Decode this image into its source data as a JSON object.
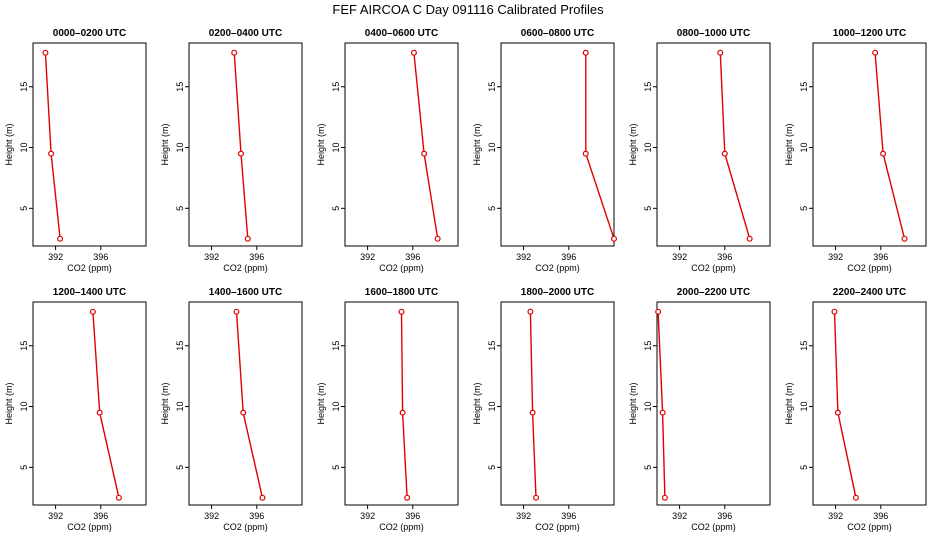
{
  "figure_title": "FEF AIRCOA C  Day 091116  Calibrated Profiles",
  "chart_data": {
    "type": "line",
    "xlabel": "CO2 (ppm)",
    "ylabel": "Height (m)",
    "xlim": [
      390.0,
      400.0
    ],
    "ylim": [
      1.9,
      18.6
    ],
    "x_ticks": [
      392,
      396
    ],
    "y_ticks": [
      5,
      10,
      15
    ],
    "grid": false,
    "series_color": "#e00000",
    "heights": [
      17.8,
      9.5,
      2.5
    ],
    "panels": [
      {
        "title": "0000–0200 UTC",
        "co2": [
          391.1,
          391.6,
          392.4
        ]
      },
      {
        "title": "0200–0400 UTC",
        "co2": [
          394.0,
          394.6,
          395.2
        ]
      },
      {
        "title": "0400–0600 UTC",
        "co2": [
          396.1,
          397.0,
          398.2
        ]
      },
      {
        "title": "0600–0800 UTC",
        "co2": [
          397.5,
          397.5,
          400.0
        ]
      },
      {
        "title": "0800–1000 UTC",
        "co2": [
          395.6,
          396.0,
          398.2
        ]
      },
      {
        "title": "1000–1200 UTC",
        "co2": [
          395.5,
          396.2,
          398.1
        ]
      },
      {
        "title": "1200–1400 UTC",
        "co2": [
          395.3,
          395.9,
          397.6
        ]
      },
      {
        "title": "1400–1600 UTC",
        "co2": [
          394.2,
          394.8,
          396.5
        ]
      },
      {
        "title": "1600–1800 UTC",
        "co2": [
          395.0,
          395.1,
          395.5
        ]
      },
      {
        "title": "1800–2000 UTC",
        "co2": [
          392.6,
          392.8,
          393.1
        ]
      },
      {
        "title": "2000–2200 UTC",
        "co2": [
          390.1,
          390.5,
          390.7
        ]
      },
      {
        "title": "2200–2400 UTC",
        "co2": [
          391.9,
          392.2,
          393.8
        ]
      }
    ]
  }
}
